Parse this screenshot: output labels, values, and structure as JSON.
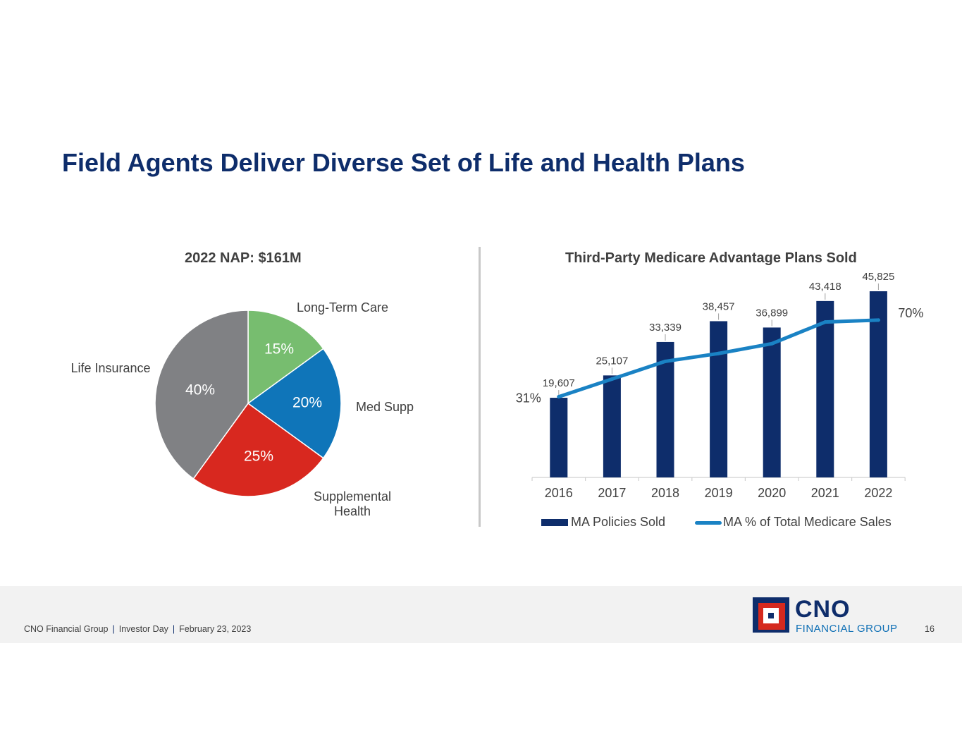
{
  "title": "Field Agents Deliver Diverse Set of Life and Health Plans",
  "colors": {
    "title": "#0e2d6b",
    "navy": "#0e2d6b",
    "line_blue": "#1a82c4",
    "pie": {
      "Long-Term Care": "#77bd6f",
      "Med Supp": "#0f75b9",
      "Supplemental Health": "#d8281f",
      "Life Insurance": "#808184"
    }
  },
  "chart_data": [
    {
      "type": "pie",
      "title": "2022 NAP: $161M",
      "slices": [
        {
          "label": "Long-Term Care",
          "value": 15,
          "value_label": "15%"
        },
        {
          "label": "Med Supp",
          "value": 20,
          "value_label": "20%"
        },
        {
          "label": "Supplemental Health",
          "label_lines": [
            "Supplemental",
            "Health"
          ],
          "value": 25,
          "value_label": "25%"
        },
        {
          "label": "Life Insurance",
          "value": 40,
          "value_label": "40%"
        }
      ],
      "start_angle": "12 o'clock",
      "direction": "clockwise"
    },
    {
      "type": "bar",
      "title": "Third-Party Medicare Advantage Plans Sold",
      "categories": [
        "2016",
        "2017",
        "2018",
        "2019",
        "2020",
        "2021",
        "2022"
      ],
      "ylim": [
        0,
        46000
      ],
      "series": [
        {
          "name": "MA Policies Sold",
          "type": "bar",
          "values": [
            19607,
            25107,
            33339,
            38457,
            36899,
            43418,
            45825
          ],
          "labels": [
            "19,607",
            "25,107",
            "33,339",
            "38,457",
            "36,899",
            "43,418",
            "45,825"
          ]
        },
        {
          "name": "MA % of Total Medicare Sales",
          "type": "line",
          "values": [
            31,
            40,
            49,
            53,
            58,
            69,
            70
          ],
          "ylim": [
            -10,
            85
          ],
          "endpoint_labels": [
            "31%",
            "70%"
          ]
        }
      ],
      "legend": "bottom"
    }
  ],
  "footer": {
    "company": "CNO Financial Group",
    "event": "Investor Day",
    "date": "February 23, 2023",
    "separator": "|",
    "page_number": "16"
  },
  "logo": {
    "name": "CNO",
    "subtitle": "FINANCIAL GROUP"
  }
}
